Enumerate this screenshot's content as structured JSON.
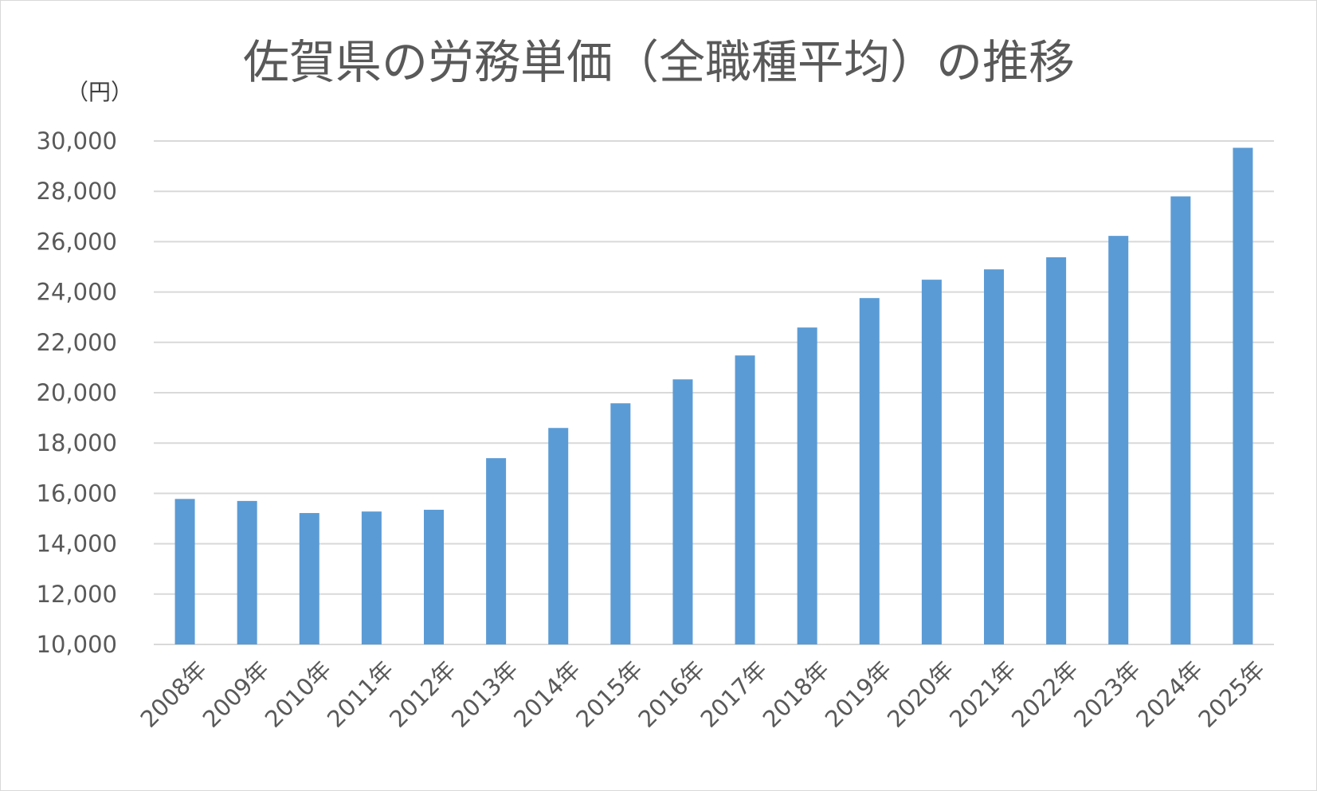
{
  "chart_data": {
    "type": "bar",
    "title": "佐賀県の労務単価（全職種平均）の推移",
    "unit_label": "（円）",
    "xlabel": "",
    "ylabel": "",
    "ylim": [
      10000,
      30000
    ],
    "y_ticks": [
      "10,000",
      "12,000",
      "14,000",
      "16,000",
      "18,000",
      "20,000",
      "22,000",
      "24,000",
      "26,000",
      "28,000",
      "30,000"
    ],
    "y_tick_values": [
      10000,
      12000,
      14000,
      16000,
      18000,
      20000,
      22000,
      24000,
      26000,
      28000,
      30000
    ],
    "grid": true,
    "bar_color": "#5b9bd5",
    "categories": [
      "2008年",
      "2009年",
      "2010年",
      "2011年",
      "2012年",
      "2013年",
      "2014年",
      "2015年",
      "2016年",
      "2017年",
      "2018年",
      "2019年",
      "2020年",
      "2021年",
      "2022年",
      "2023年",
      "2024年",
      "2025年"
    ],
    "values": [
      15780,
      15700,
      15220,
      15280,
      15350,
      17400,
      18600,
      19580,
      20530,
      21480,
      22590,
      23760,
      24490,
      24900,
      25380,
      26230,
      27800,
      29730
    ]
  }
}
